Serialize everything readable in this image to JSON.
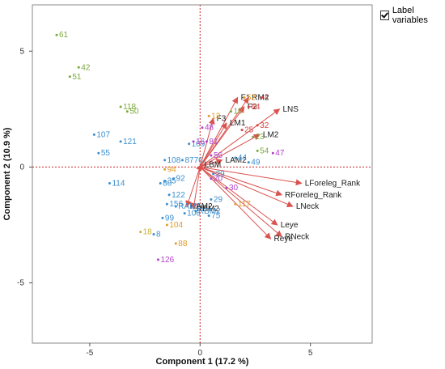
{
  "label_toggle": {
    "label": "Label variables",
    "checked": true
  },
  "chart_data": {
    "type": "scatter",
    "title": "",
    "xlabel": "Component 1  (17.2 %)",
    "ylabel": "Component 2  (10.9 %)",
    "xlim": [
      -7.6,
      7.8
    ],
    "ylim": [
      -7.6,
      7.0
    ],
    "xticks": [
      -5,
      0,
      5
    ],
    "yticks": [
      -5,
      0,
      5
    ],
    "grid": false,
    "legend": "none",
    "reference_lines": {
      "x": 0,
      "y": 0,
      "color": "#cc2222"
    },
    "colors": {
      "vector": "#d9534f",
      "label": "#1a1a1a",
      "frame": "#555555"
    },
    "points": [
      {
        "x": -6.5,
        "y": 5.7,
        "label": "61",
        "color": "#7aa83c"
      },
      {
        "x": -5.5,
        "y": 4.3,
        "label": "42",
        "color": "#7aa83c"
      },
      {
        "x": -5.9,
        "y": 3.9,
        "label": "51",
        "color": "#7aa83c"
      },
      {
        "x": -3.6,
        "y": 2.6,
        "label": "118",
        "color": "#7aa83c"
      },
      {
        "x": -3.3,
        "y": 2.4,
        "label": "50",
        "color": "#7aa83c"
      },
      {
        "x": -4.8,
        "y": 1.4,
        "label": "107",
        "color": "#3b8fcf"
      },
      {
        "x": -3.6,
        "y": 1.1,
        "label": "121",
        "color": "#3b8fcf"
      },
      {
        "x": -4.6,
        "y": 0.6,
        "label": "55",
        "color": "#3b8fcf"
      },
      {
        "x": -4.1,
        "y": -0.7,
        "label": "114",
        "color": "#3b8fcf"
      },
      {
        "x": -0.5,
        "y": 1.0,
        "label": "109",
        "color": "#3b8fcf"
      },
      {
        "x": -0.3,
        "y": 1.1,
        "label": "16",
        "color": "#b040c8"
      },
      {
        "x": -1.6,
        "y": 0.3,
        "label": "108",
        "color": "#3b8fcf"
      },
      {
        "x": -0.8,
        "y": 0.3,
        "label": "8776",
        "color": "#3b8fcf"
      },
      {
        "x": -1.6,
        "y": -0.1,
        "label": "94",
        "color": "#e09a2a"
      },
      {
        "x": -1.2,
        "y": -0.5,
        "label": "92",
        "color": "#3b8fcf"
      },
      {
        "x": -1.6,
        "y": -0.6,
        "label": "35",
        "color": "#3b8fcf"
      },
      {
        "x": -1.8,
        "y": -0.7,
        "label": "80",
        "color": "#3b8fcf"
      },
      {
        "x": -1.4,
        "y": -1.2,
        "label": "122",
        "color": "#3b8fcf"
      },
      {
        "x": -1.5,
        "y": -1.6,
        "label": "156",
        "color": "#3b8fcf"
      },
      {
        "x": -1.1,
        "y": -1.7,
        "label": "RAM2",
        "color": "#3b8fcf"
      },
      {
        "x": -0.7,
        "y": -2.0,
        "label": "106",
        "color": "#3b8fcf"
      },
      {
        "x": -0.2,
        "y": -1.9,
        "label": "RBM2",
        "color": "#3b8fcf"
      },
      {
        "x": 0.4,
        "y": -2.1,
        "label": "75",
        "color": "#3b8fcf"
      },
      {
        "x": -1.7,
        "y": -2.2,
        "label": "99",
        "color": "#3b8fcf"
      },
      {
        "x": -1.5,
        "y": -2.5,
        "label": "104",
        "color": "#e09a2a"
      },
      {
        "x": -2.7,
        "y": -2.8,
        "label": "18",
        "color": "#c8b030"
      },
      {
        "x": -2.1,
        "y": -2.9,
        "label": "8",
        "color": "#3b8fcf"
      },
      {
        "x": -1.1,
        "y": -3.3,
        "label": "88",
        "color": "#e09a2a"
      },
      {
        "x": -1.9,
        "y": -4.0,
        "label": "126",
        "color": "#b040c8"
      },
      {
        "x": 1.4,
        "y": 2.4,
        "label": "19",
        "color": "#7aa83c"
      },
      {
        "x": 0.4,
        "y": 2.2,
        "label": "13",
        "color": "#e09a2a"
      },
      {
        "x": 0.1,
        "y": 1.7,
        "label": "48",
        "color": "#b040c8"
      },
      {
        "x": 0.3,
        "y": 1.1,
        "label": "81",
        "color": "#b040c8"
      },
      {
        "x": 0.5,
        "y": 0.5,
        "label": "56",
        "color": "#b040c8"
      },
      {
        "x": 2.4,
        "y": 1.3,
        "label": "23",
        "color": "#7aa83c"
      },
      {
        "x": 2.6,
        "y": 0.7,
        "label": "54",
        "color": "#7aa83c"
      },
      {
        "x": 3.3,
        "y": 0.6,
        "label": "47",
        "color": "#b040c8"
      },
      {
        "x": 2.2,
        "y": 0.2,
        "label": "49",
        "color": "#3b8fcf"
      },
      {
        "x": 1.6,
        "y": 0.4,
        "label": "44",
        "color": "#3b8fcf"
      },
      {
        "x": 0.6,
        "y": -0.3,
        "label": "29",
        "color": "#3b8fcf"
      },
      {
        "x": 0.5,
        "y": -0.5,
        "label": "20",
        "color": "#b040c8"
      },
      {
        "x": 0.5,
        "y": -1.4,
        "label": "29",
        "color": "#3b8fcf"
      },
      {
        "x": 1.2,
        "y": -0.9,
        "label": "30",
        "color": "#b040c8"
      },
      {
        "x": 1.6,
        "y": -1.6,
        "label": "117",
        "color": "#e09a2a"
      },
      {
        "x": 2.0,
        "y": 3.0,
        "label": "52",
        "color": "#e09a2a"
      },
      {
        "x": 2.8,
        "y": 3.0,
        "label": "4",
        "color": "#d94040"
      },
      {
        "x": 2.2,
        "y": 2.6,
        "label": "64",
        "color": "#d94040"
      },
      {
        "x": 2.6,
        "y": 1.8,
        "label": "32",
        "color": "#d94040"
      },
      {
        "x": 1.9,
        "y": 1.6,
        "label": "25",
        "color": "#d94040"
      }
    ],
    "vectors": [
      {
        "x": 1.7,
        "y": 3.0,
        "label": "F1"
      },
      {
        "x": 2.2,
        "y": 3.0,
        "label": "RM2"
      },
      {
        "x": 2.0,
        "y": 2.6,
        "label": "F2"
      },
      {
        "x": 3.6,
        "y": 2.5,
        "label": "LNS"
      },
      {
        "x": 0.6,
        "y": 2.1,
        "label": "F3"
      },
      {
        "x": 1.2,
        "y": 1.9,
        "label": "LM1"
      },
      {
        "x": 2.7,
        "y": 1.4,
        "label": "LM2"
      },
      {
        "x": 1.0,
        "y": 0.3,
        "label": "LAM2"
      },
      {
        "x": 0.05,
        "y": 0.1,
        "label": "LBM"
      },
      {
        "x": 4.6,
        "y": -0.7,
        "label": "LForeleg_Rank"
      },
      {
        "x": 3.7,
        "y": -1.2,
        "label": "RForeleg_Rank"
      },
      {
        "x": 4.2,
        "y": -1.7,
        "label": "LNeck"
      },
      {
        "x": 3.5,
        "y": -2.5,
        "label": "Leye"
      },
      {
        "x": 3.7,
        "y": -3.0,
        "label": "RNeck"
      },
      {
        "x": 3.2,
        "y": -3.1,
        "label": "Reye"
      },
      {
        "x": -0.6,
        "y": -1.7,
        "label": "RAM2"
      },
      {
        "x": -0.3,
        "y": -1.8,
        "label": "RBM2"
      }
    ]
  }
}
